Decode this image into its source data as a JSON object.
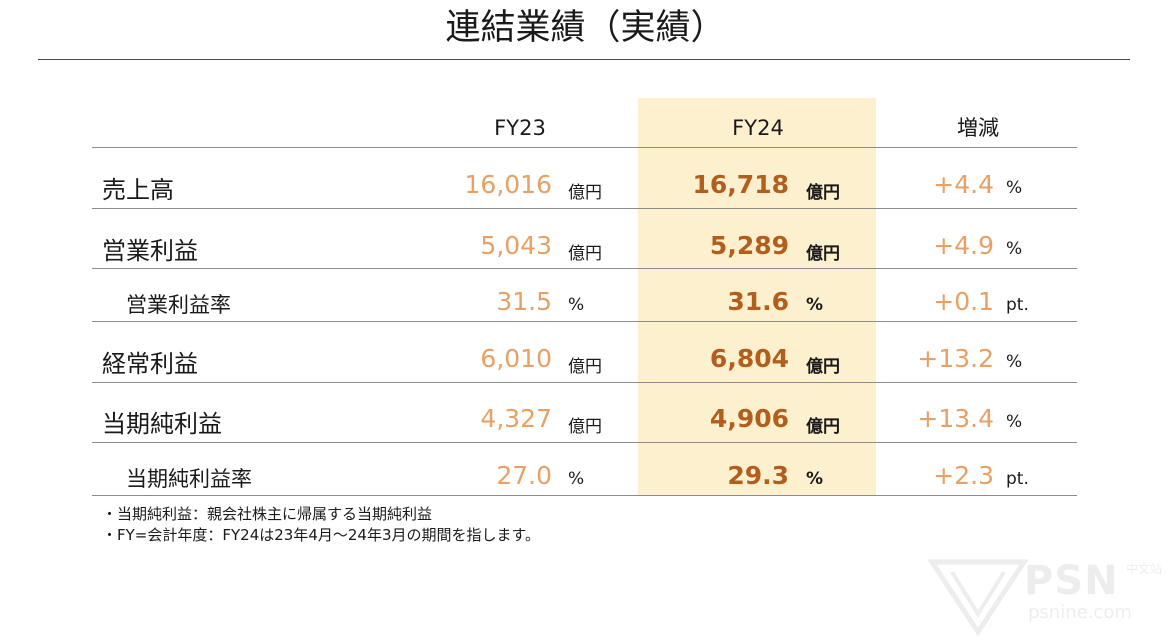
{
  "title": "連結業績（実績）",
  "columns": {
    "fy23": "FY23",
    "fy24": "FY24",
    "change": "増減"
  },
  "rows": [
    {
      "label": "売上高",
      "fy23": "16,016",
      "fy23_unit": "億円",
      "fy24": "16,718",
      "fy24_unit": "億円",
      "change": "+4.4",
      "change_unit": "%"
    },
    {
      "label": "営業利益",
      "fy23": "5,043",
      "fy23_unit": "億円",
      "fy24": "5,289",
      "fy24_unit": "億円",
      "change": "+4.9",
      "change_unit": "%"
    },
    {
      "label": "営業利益率",
      "fy23": "31.5",
      "fy23_unit": "%",
      "fy24": "31.6",
      "fy24_unit": "%",
      "change": "+0.1",
      "change_unit": "pt."
    },
    {
      "label": "経常利益",
      "fy23": "6,010",
      "fy23_unit": "億円",
      "fy24": "6,804",
      "fy24_unit": "億円",
      "change": "+13.2",
      "change_unit": "%"
    },
    {
      "label": "当期純利益",
      "fy23": "4,327",
      "fy23_unit": "億円",
      "fy24": "4,906",
      "fy24_unit": "億円",
      "change": "+13.4",
      "change_unit": "%"
    },
    {
      "label": "当期純利益率",
      "fy23": "27.0",
      "fy23_unit": "%",
      "fy24": "29.3",
      "fy24_unit": "%",
      "change": "+2.3",
      "change_unit": "pt."
    }
  ],
  "notes": [
    "・当期純利益：親会社株主に帰属する当期純利益",
    "・FY=会計年度：FY24は23年4月～24年3月の期間を指します。"
  ],
  "watermark": {
    "brand": "PSN",
    "sub": "中文站",
    "domain": "psnine.com"
  },
  "colors": {
    "fy23_value": "#e8a064",
    "fy24_value": "#b25f1d",
    "change_value": "#e8a064",
    "fy24_band": "#fdf0cf"
  }
}
